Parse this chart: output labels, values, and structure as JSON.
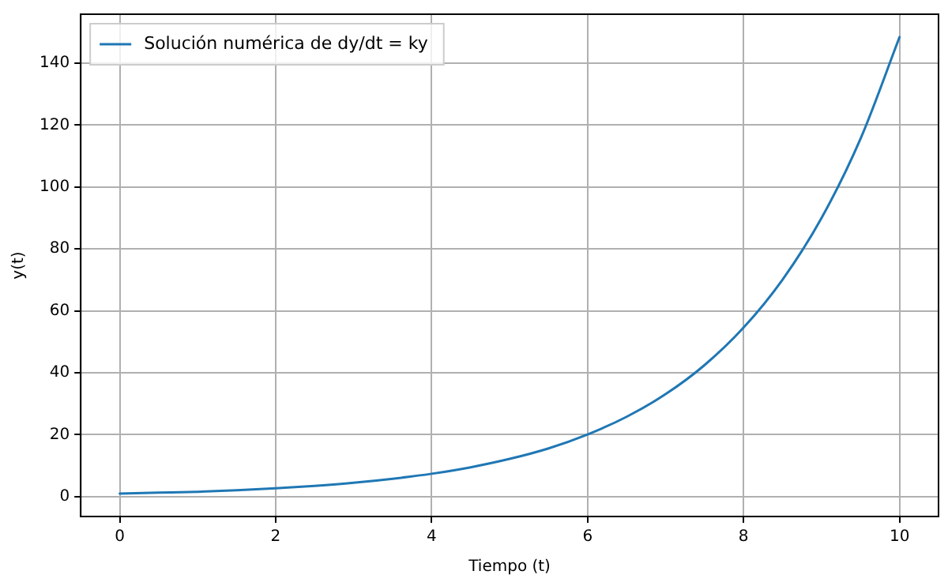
{
  "chart_data": {
    "type": "line",
    "xlabel": "Tiempo (t)",
    "ylabel": "y(t)",
    "x": [
      0,
      0.5,
      1,
      1.5,
      2,
      2.5,
      3,
      3.5,
      4,
      4.5,
      5,
      5.5,
      6,
      6.5,
      7,
      7.5,
      8,
      8.5,
      9,
      9.5,
      10
    ],
    "series": [
      {
        "name": "Solución numérica de dy/dt = ky",
        "color": "#1f77b4",
        "values": [
          1,
          1.3,
          1.6,
          2.1,
          2.7,
          3.5,
          4.5,
          5.8,
          7.4,
          9.5,
          12.2,
          15.6,
          20.1,
          25.8,
          33.1,
          42.5,
          54.6,
          70.1,
          90,
          115.6,
          148.4
        ]
      }
    ],
    "xlim": [
      -0.5,
      10.5
    ],
    "ylim": [
      -6.4,
      155.8
    ],
    "xticks": [
      0,
      2,
      4,
      6,
      8,
      10
    ],
    "yticks": [
      0,
      20,
      40,
      60,
      80,
      100,
      120,
      140
    ],
    "grid": true,
    "legend": "top left",
    "marker": "none",
    "line_style": "solid"
  }
}
